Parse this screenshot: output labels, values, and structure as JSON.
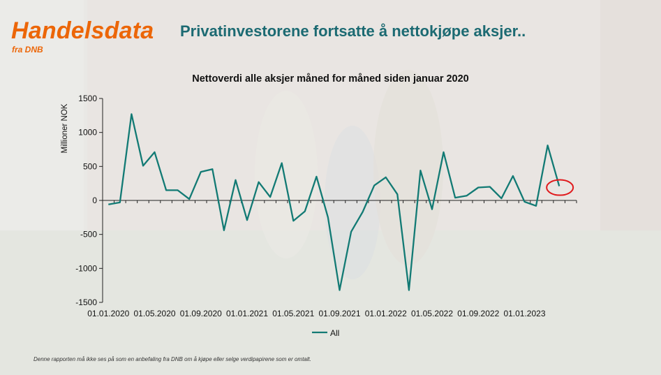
{
  "logo": {
    "title": "Handelsdata",
    "subtitle": "fra DNB"
  },
  "headline": "Privatinvestorene fortsatte å nettokjøpe aksjer..",
  "footer": "Denne rapporten må ikke ses på som en anbefaling fra DNB om å kjøpe eller selge verdipapirene som er omtalt.",
  "colors": {
    "brand": "#ec6608",
    "headline": "#1c6a72",
    "series": "#127a74",
    "highlight": "#e0191c"
  },
  "chart_data": {
    "type": "line",
    "title": "Nettoverdi alle aksjer måned for måned siden januar 2020",
    "ylabel": "Millioner NOK",
    "xlabel": "",
    "ylim": [
      -1500,
      1500
    ],
    "yticks": [
      -1500,
      -1000,
      -500,
      0,
      500,
      1000,
      1500
    ],
    "xtick_labels": [
      "01.01.2020",
      "01.05.2020",
      "01.09.2020",
      "01.01.2021",
      "01.05.2021",
      "01.09.2021",
      "01.01.2022",
      "01.05.2022",
      "01.09.2022",
      "01.01.2023"
    ],
    "legend": {
      "position": "bottom",
      "entries": [
        "All"
      ]
    },
    "highlight": "last point circled in red",
    "series": [
      {
        "name": "All",
        "x": [
          "2020-01",
          "2020-02",
          "2020-03",
          "2020-04",
          "2020-05",
          "2020-06",
          "2020-07",
          "2020-08",
          "2020-09",
          "2020-10",
          "2020-11",
          "2020-12",
          "2021-01",
          "2021-02",
          "2021-03",
          "2021-04",
          "2021-05",
          "2021-06",
          "2021-07",
          "2021-08",
          "2021-09",
          "2021-10",
          "2021-11",
          "2021-12",
          "2022-01",
          "2022-02",
          "2022-03",
          "2022-04",
          "2022-05",
          "2022-06",
          "2022-07",
          "2022-08",
          "2022-09",
          "2022-10",
          "2022-11",
          "2022-12",
          "2023-01",
          "2023-02",
          "2023-03",
          "2023-04",
          "2023-05"
        ],
        "values": [
          -60,
          -30,
          1270,
          510,
          710,
          150,
          150,
          20,
          420,
          460,
          -440,
          300,
          -290,
          270,
          50,
          550,
          -300,
          -160,
          350,
          -250,
          -1320,
          -460,
          -170,
          220,
          340,
          90,
          -1320,
          440,
          -130,
          710,
          40,
          70,
          190,
          200,
          30,
          360,
          -20,
          -80,
          810,
          210,
          null
        ]
      }
    ]
  }
}
